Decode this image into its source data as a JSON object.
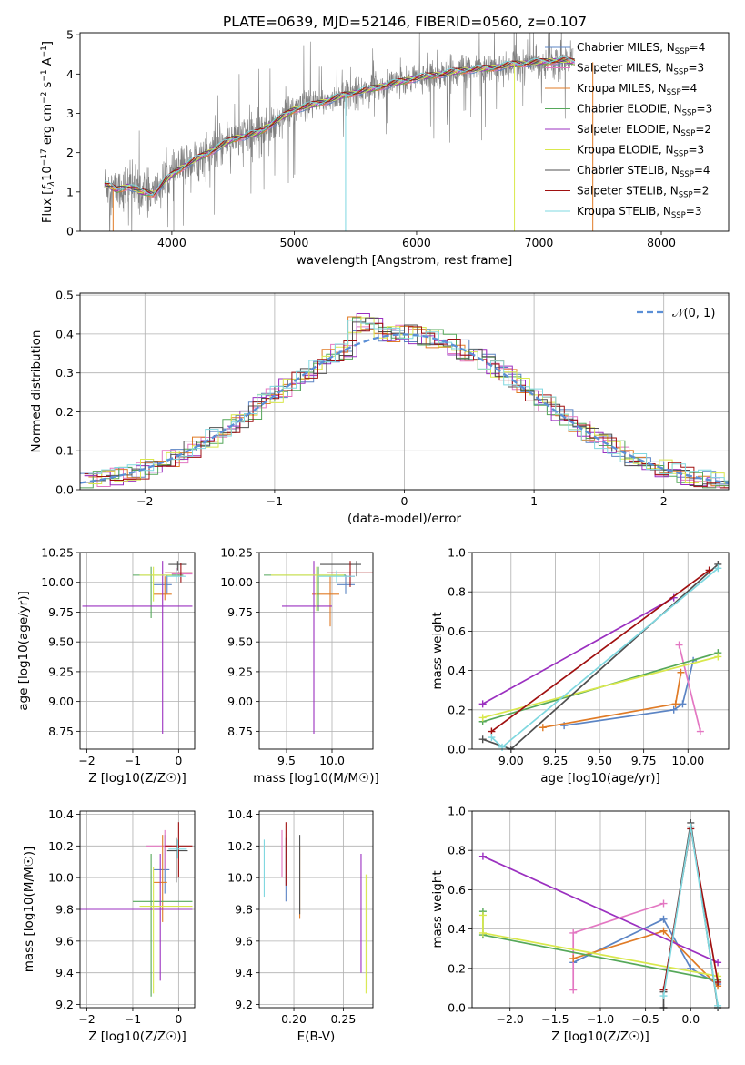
{
  "figure_title": "PLATE=0639, MJD=52146, FIBERID=0560, z=0.107",
  "colors": {
    "Chabrier MILES": "#5b84c4",
    "Salpeter MILES": "#e377c2",
    "Kroupa MILES": "#e07b26",
    "Chabrier ELODIE": "#55a85a",
    "Salpeter ELODIE": "#9b30c0",
    "Kroupa ELODIE": "#d9e84c",
    "Chabrier STELIB": "#505050",
    "Salpeter STELIB": "#a01010",
    "Kroupa STELIB": "#7fd8e0",
    "data": "#808080",
    "gaussian": "#5b8fd6",
    "grid": "#b0b0b0"
  },
  "chart_data": [
    {
      "id": "spectrum",
      "type": "line",
      "title": "PLATE=0639, MJD=52146, FIBERID=0560, z=0.107",
      "xlabel": "wavelength [Angstrom, rest frame]",
      "ylabel": "Flux [f_λ 10^-17 erg cm^-2 s^-1 A^-1]",
      "xlim": [
        3250,
        8550
      ],
      "ylim": [
        0,
        5.05
      ],
      "xticks": [
        4000,
        5000,
        6000,
        7000,
        8000
      ],
      "yticks": [
        0,
        1,
        2,
        3,
        4,
        5
      ],
      "grid": false,
      "legend_position": "top-right",
      "continuum_knots": {
        "x": [
          3450,
          3550,
          3650,
          3750,
          3850,
          3950,
          4050,
          4150,
          4300,
          4500,
          4700,
          4850,
          5000,
          5200,
          5400,
          5600,
          5800,
          6000,
          6200,
          6400,
          6600,
          6800,
          7000,
          7200,
          7300
        ],
        "y": [
          1.2,
          1.05,
          1.15,
          1.0,
          0.95,
          1.3,
          1.55,
          1.75,
          2.0,
          2.35,
          2.5,
          2.8,
          3.1,
          3.25,
          3.45,
          3.6,
          3.75,
          3.9,
          4.0,
          4.1,
          4.15,
          4.25,
          4.3,
          4.35,
          4.3
        ]
      },
      "series": [
        {
          "name": "Chabrier MILES",
          "nssp": "4"
        },
        {
          "name": "Salpeter MILES",
          "nssp": "3"
        },
        {
          "name": "Kroupa MILES",
          "nssp": "4"
        },
        {
          "name": "Chabrier ELODIE",
          "nssp": "3"
        },
        {
          "name": "Salpeter ELODIE",
          "nssp": "2"
        },
        {
          "name": "Kroupa ELODIE",
          "nssp": "3"
        },
        {
          "name": "Chabrier STELIB",
          "nssp": "4"
        },
        {
          "name": "Salpeter STELIB",
          "nssp": "2"
        },
        {
          "name": "Kroupa STELIB",
          "nssp": "3"
        }
      ]
    },
    {
      "id": "residuals",
      "type": "line",
      "xlabel": "(data-model)/error",
      "ylabel": "Normed distribution",
      "xlim": [
        -2.5,
        2.5
      ],
      "ylim": [
        0,
        0.505
      ],
      "xticks": [
        -2,
        -1,
        0,
        1,
        2
      ],
      "yticks": [
        0.0,
        0.1,
        0.2,
        0.3,
        0.4,
        0.5
      ],
      "grid": true,
      "legend_position": "top-right",
      "legend_label": "𝒩(0, 1)",
      "gaussian": {
        "mean": 0,
        "sigma": 1
      },
      "bin_width": 0.1
    },
    {
      "id": "age-vs-Z",
      "type": "scatter",
      "xlabel": "Z [log10(Z/Z☉)]",
      "ylabel": "age [log10(age/yr)]",
      "xlim": [
        -2.15,
        0.35
      ],
      "ylim": [
        8.6,
        10.25
      ],
      "xticks": [
        -2,
        -1,
        0
      ],
      "yticks": [
        8.75,
        9.0,
        9.25,
        9.5,
        9.75,
        10.0,
        10.25
      ],
      "grid": true,
      "points": [
        {
          "series": "Chabrier MILES",
          "x": -0.25,
          "y": 9.98,
          "xerr": [
            0.3,
            0.1
          ],
          "yerr": [
            0.08,
            0.08
          ]
        },
        {
          "series": "Salpeter MILES",
          "x": -0.05,
          "y": 10.07,
          "xerr": [
            0.1,
            0.35
          ],
          "yerr": [
            0.05,
            0.05
          ]
        },
        {
          "series": "Kroupa MILES",
          "x": -0.3,
          "y": 9.9,
          "xerr": [
            0.25,
            0.15
          ],
          "yerr": [
            0.05,
            0.15
          ]
        },
        {
          "series": "Chabrier ELODIE",
          "x": -0.6,
          "y": 10.06,
          "xerr": [
            0.4,
            0.7
          ],
          "yerr": [
            0.36,
            0.07
          ]
        },
        {
          "series": "Salpeter ELODIE",
          "x": -0.35,
          "y": 9.8,
          "xerr": [
            1.75,
            0.65
          ],
          "yerr": [
            1.07,
            0.38
          ]
        },
        {
          "series": "Kroupa ELODIE",
          "x": -0.55,
          "y": 10.06,
          "xerr": [
            0.3,
            0.4
          ],
          "yerr": [
            0.22,
            0.07
          ]
        },
        {
          "series": "Chabrier STELIB",
          "x": -0.02,
          "y": 10.15,
          "xerr": [
            0.2,
            0.2
          ],
          "yerr": [
            0.05,
            0.03
          ]
        },
        {
          "series": "Salpeter STELIB",
          "x": 0.05,
          "y": 10.08,
          "xerr": [
            0.35,
            0.25
          ],
          "yerr": [
            0.08,
            0.08
          ]
        },
        {
          "series": "Kroupa STELIB",
          "x": -0.05,
          "y": 10.05,
          "xerr": [
            0.2,
            0.2
          ],
          "yerr": [
            0.05,
            0.05
          ]
        }
      ]
    },
    {
      "id": "age-vs-mass",
      "type": "scatter",
      "xlabel": "mass [log10(M/M☉)]",
      "ylabel": "",
      "xlim": [
        9.2,
        10.45
      ],
      "ylim": [
        8.6,
        10.25
      ],
      "xticks": [
        9.5,
        10.0
      ],
      "yticks": [
        8.75,
        9.0,
        9.25,
        9.5,
        9.75,
        10.0,
        10.25
      ],
      "grid": true,
      "points": [
        {
          "series": "Chabrier MILES",
          "x": 10.15,
          "y": 9.98,
          "xerr": [
            0.1,
            0.1
          ],
          "yerr": [
            0.08,
            0.08
          ]
        },
        {
          "series": "Salpeter MILES",
          "x": 10.2,
          "y": 10.05,
          "xerr": [
            0.05,
            0.05
          ],
          "yerr": [
            0.05,
            0.05
          ]
        },
        {
          "series": "Kroupa MILES",
          "x": 9.98,
          "y": 9.9,
          "xerr": [
            0.2,
            0.1
          ],
          "yerr": [
            0.27,
            0.15
          ]
        },
        {
          "series": "Chabrier ELODIE",
          "x": 9.85,
          "y": 10.06,
          "xerr": [
            0.6,
            0.3
          ],
          "yerr": [
            0.3,
            0.07
          ]
        },
        {
          "series": "Salpeter ELODIE",
          "x": 9.8,
          "y": 9.8,
          "xerr": [
            0.35,
            0.2
          ],
          "yerr": [
            1.07,
            0.38
          ]
        },
        {
          "series": "Kroupa ELODIE",
          "x": 9.83,
          "y": 10.06,
          "xerr": [
            0.5,
            0.3
          ],
          "yerr": [
            0.3,
            0.07
          ]
        },
        {
          "series": "Chabrier STELIB",
          "x": 10.27,
          "y": 10.15,
          "xerr": [
            0.4,
            0.05
          ],
          "yerr": [
            0.1,
            0.03
          ]
        },
        {
          "series": "Salpeter STELIB",
          "x": 10.2,
          "y": 10.08,
          "xerr": [
            0.25,
            0.25
          ],
          "yerr": [
            0.12,
            0.1
          ]
        },
        {
          "series": "Kroupa STELIB",
          "x": 10.05,
          "y": 10.05,
          "xerr": [
            0.2,
            0.2
          ],
          "yerr": [
            0.05,
            0.05
          ]
        }
      ]
    },
    {
      "id": "weight-vs-age",
      "type": "line",
      "xlabel": "age [log10(age/yr)]",
      "ylabel": "mass weight",
      "xlim": [
        8.78,
        10.23
      ],
      "ylim": [
        0,
        1.0
      ],
      "xticks": [
        9.0,
        9.25,
        9.5,
        9.75,
        10.0
      ],
      "yticks": [
        0.0,
        0.2,
        0.4,
        0.6,
        0.8,
        1.0
      ],
      "grid": true,
      "series": [
        {
          "name": "Chabrier MILES",
          "x": [
            9.3,
            9.92,
            9.97,
            10.03
          ],
          "y": [
            0.12,
            0.2,
            0.23,
            0.45
          ]
        },
        {
          "name": "Salpeter MILES",
          "x": [
            9.95,
            10.07
          ],
          "y": [
            0.53,
            0.09
          ]
        },
        {
          "name": "Kroupa MILES",
          "x": [
            9.18,
            9.93,
            9.96
          ],
          "y": [
            0.11,
            0.23,
            0.39
          ]
        },
        {
          "name": "Chabrier ELODIE",
          "x": [
            8.84,
            10.17
          ],
          "y": [
            0.14,
            0.49
          ]
        },
        {
          "name": "Salpeter ELODIE",
          "x": [
            8.84,
            9.92
          ],
          "y": [
            0.23,
            0.77
          ]
        },
        {
          "name": "Kroupa ELODIE",
          "x": [
            8.84,
            10.17
          ],
          "y": [
            0.16,
            0.47
          ]
        },
        {
          "name": "Chabrier STELIB",
          "x": [
            8.84,
            9.0,
            10.17
          ],
          "y": [
            0.05,
            0.0,
            0.94
          ]
        },
        {
          "name": "Salpeter STELIB",
          "x": [
            8.89,
            10.12
          ],
          "y": [
            0.09,
            0.91
          ]
        },
        {
          "name": "Kroupa STELIB",
          "x": [
            8.89,
            8.95,
            10.17
          ],
          "y": [
            0.06,
            0.01,
            0.92
          ]
        }
      ]
    },
    {
      "id": "mass-vs-Z",
      "type": "scatter",
      "xlabel": "Z [log10(Z/Z☉)]",
      "ylabel": "mass [log10(M/M☉)]",
      "xlim": [
        -2.15,
        0.35
      ],
      "ylim": [
        9.18,
        10.42
      ],
      "xticks": [
        -2,
        -1,
        0
      ],
      "yticks": [
        9.2,
        9.4,
        9.6,
        9.8,
        10.0,
        10.2,
        10.4
      ],
      "grid": true,
      "points": [
        {
          "series": "Chabrier MILES",
          "x": -0.3,
          "y": 10.05,
          "xerr": [
            0.25,
            0.1
          ],
          "yerr": [
            0.15,
            0.22
          ]
        },
        {
          "series": "Salpeter MILES",
          "x": -0.3,
          "y": 10.2,
          "xerr": [
            0.4,
            0.15
          ],
          "yerr": [
            0.15,
            0.1
          ]
        },
        {
          "series": "Kroupa MILES",
          "x": -0.35,
          "y": 9.97,
          "xerr": [
            0.2,
            0.1
          ],
          "yerr": [
            0.25,
            0.3
          ]
        },
        {
          "series": "Chabrier ELODIE",
          "x": -0.6,
          "y": 9.85,
          "xerr": [
            0.4,
            0.9
          ],
          "yerr": [
            0.6,
            0.3
          ]
        },
        {
          "series": "Salpeter ELODIE",
          "x": -0.4,
          "y": 9.8,
          "xerr": [
            1.75,
            0.7
          ],
          "yerr": [
            0.45,
            0.35
          ]
        },
        {
          "series": "Kroupa ELODIE",
          "x": -0.55,
          "y": 9.82,
          "xerr": [
            0.3,
            0.85
          ],
          "yerr": [
            0.55,
            0.25
          ]
        },
        {
          "series": "Chabrier STELIB",
          "x": -0.05,
          "y": 10.17,
          "xerr": [
            0.2,
            0.25
          ],
          "yerr": [
            0.2,
            0.08
          ]
        },
        {
          "series": "Salpeter STELIB",
          "x": 0.0,
          "y": 10.2,
          "xerr": [
            0.3,
            0.3
          ],
          "yerr": [
            0.2,
            0.15
          ]
        },
        {
          "series": "Kroupa STELIB",
          "x": -0.02,
          "y": 10.18,
          "xerr": [
            0.2,
            0.2
          ],
          "yerr": [
            0.06,
            0.06
          ]
        }
      ]
    },
    {
      "id": "mass-vs-ebv",
      "type": "scatter",
      "xlabel": "E(B-V)",
      "ylabel": "",
      "xlim": [
        0.165,
        0.28
      ],
      "ylim": [
        9.18,
        10.42
      ],
      "xticks": [
        0.2,
        0.25
      ],
      "yticks": [
        9.2,
        9.4,
        9.6,
        9.8,
        10.0,
        10.2,
        10.4
      ],
      "grid": true,
      "points": [
        {
          "series": "Chabrier MILES",
          "x": 0.192,
          "y": 10.05,
          "yerr": [
            0.2,
            0.2
          ]
        },
        {
          "series": "Salpeter MILES",
          "x": 0.188,
          "y": 10.15,
          "yerr": [
            0.15,
            0.15
          ]
        },
        {
          "series": "Kroupa MILES",
          "x": 0.206,
          "y": 9.97,
          "yerr": [
            0.23,
            0.23
          ]
        },
        {
          "series": "Chabrier ELODIE",
          "x": 0.274,
          "y": 9.8,
          "yerr": [
            0.5,
            0.22
          ]
        },
        {
          "series": "Salpeter ELODIE",
          "x": 0.268,
          "y": 9.75,
          "yerr": [
            0.35,
            0.4
          ]
        },
        {
          "series": "Kroupa ELODIE",
          "x": 0.273,
          "y": 9.82,
          "yerr": [
            0.55,
            0.2
          ]
        },
        {
          "series": "Chabrier STELIB",
          "x": 0.206,
          "y": 10.07,
          "yerr": [
            0.3,
            0.2
          ]
        },
        {
          "series": "Salpeter STELIB",
          "x": 0.192,
          "y": 10.15,
          "yerr": [
            0.2,
            0.2
          ]
        },
        {
          "series": "Kroupa STELIB",
          "x": 0.17,
          "y": 10.06,
          "yerr": [
            0.18,
            0.18
          ]
        }
      ]
    },
    {
      "id": "weight-vs-Z",
      "type": "line",
      "xlabel": "Z [log10(Z/Z☉)]",
      "ylabel": "mass weight",
      "xlim": [
        -2.42,
        0.42
      ],
      "ylim": [
        0,
        1.0
      ],
      "xticks": [
        -2.0,
        -1.5,
        -1.0,
        -0.5,
        0.0
      ],
      "yticks": [
        0.0,
        0.2,
        0.4,
        0.6,
        0.8,
        1.0
      ],
      "grid": true,
      "series": [
        {
          "name": "Chabrier MILES",
          "x": [
            -1.3,
            -0.3,
            0.0,
            0.3
          ],
          "y": [
            0.23,
            0.45,
            0.2,
            0.12
          ]
        },
        {
          "name": "Salpeter MILES",
          "x": [
            -1.3,
            -1.3,
            -0.3
          ],
          "y": [
            0.09,
            0.38,
            0.53
          ]
        },
        {
          "name": "Kroupa MILES",
          "x": [
            -1.3,
            -0.3,
            0.3
          ],
          "y": [
            0.25,
            0.39,
            0.11
          ]
        },
        {
          "name": "Chabrier ELODIE",
          "x": [
            -2.3,
            -2.3,
            0.3
          ],
          "y": [
            0.49,
            0.37,
            0.14
          ]
        },
        {
          "name": "Salpeter ELODIE",
          "x": [
            -2.3,
            0.3
          ],
          "y": [
            0.77,
            0.23
          ]
        },
        {
          "name": "Kroupa ELODIE",
          "x": [
            -2.3,
            -2.3,
            0.3
          ],
          "y": [
            0.47,
            0.38,
            0.16
          ]
        },
        {
          "name": "Chabrier STELIB",
          "x": [
            -0.3,
            -0.3,
            0.0,
            0.3
          ],
          "y": [
            0.0,
            0.08,
            0.94,
            0.0
          ]
        },
        {
          "name": "Salpeter STELIB",
          "x": [
            -0.3,
            0.0,
            0.3
          ],
          "y": [
            0.09,
            0.91,
            0.13
          ]
        },
        {
          "name": "Kroupa STELIB",
          "x": [
            -0.3,
            0.0,
            0.3
          ],
          "y": [
            0.06,
            0.92,
            0.01
          ]
        }
      ]
    }
  ]
}
